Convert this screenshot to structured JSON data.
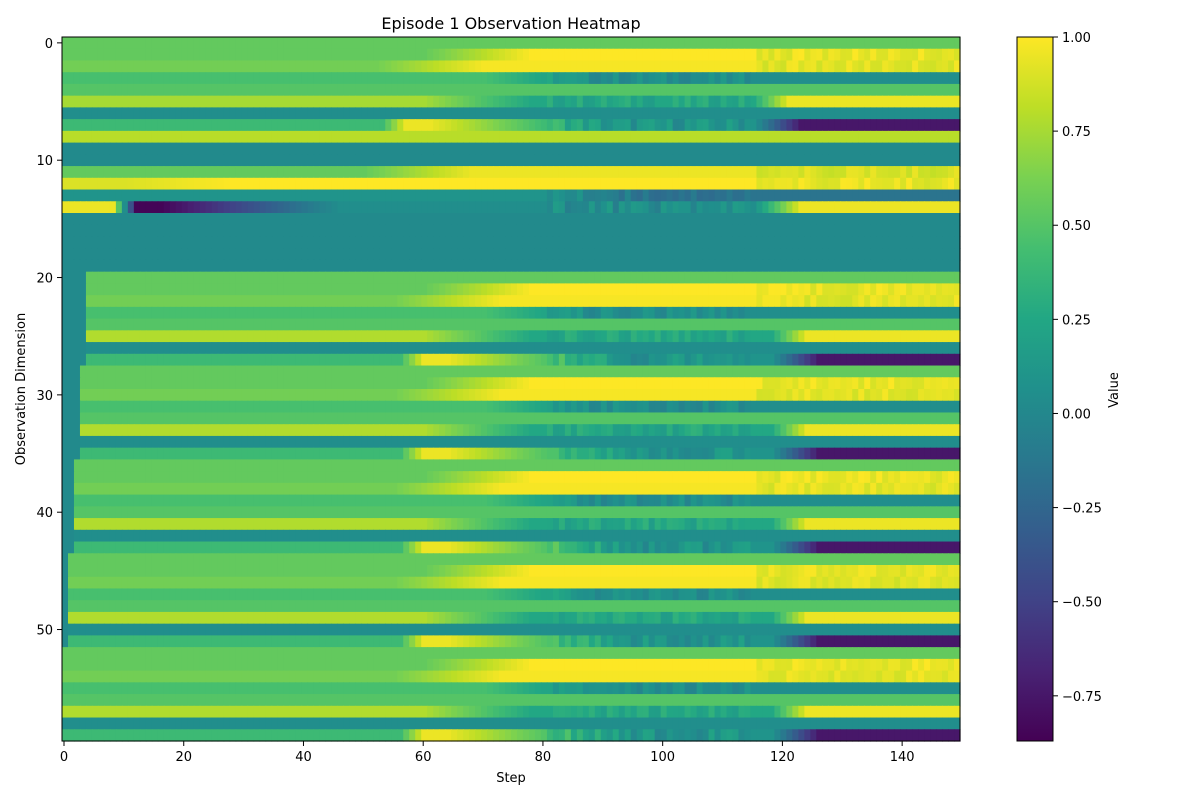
{
  "chart_data": {
    "type": "heatmap",
    "title": "Episode 1 Observation Heatmap",
    "xlabel": "Step",
    "ylabel": "Observation Dimension",
    "xlim": [
      0,
      150
    ],
    "ylim": [
      59.5,
      -0.5
    ],
    "x_ticks": [
      0,
      20,
      40,
      60,
      80,
      100,
      120,
      140
    ],
    "y_ticks": [
      0,
      10,
      20,
      30,
      40,
      50
    ],
    "colorbar": {
      "label": "Value",
      "colormap": "viridis",
      "range": [
        -0.87,
        1.0
      ],
      "ticks": [
        1.0,
        0.75,
        0.5,
        0.25,
        0.0,
        -0.25,
        -0.5,
        -0.75
      ],
      "tick_labels": [
        "1.00",
        "0.75",
        "0.50",
        "0.25",
        "0.00",
        "−0.25",
        "−0.50",
        "−0.75"
      ]
    },
    "n_steps": 150,
    "n_dims": 60,
    "groups": [
      {
        "dims": [
          0,
          7
        ],
        "start_step": 0,
        "rows": [
          {
            "v": 0.55
          },
          {
            "v": 0.55,
            "shape": "rise",
            "start": 60,
            "end": 1.0
          },
          {
            "v": 0.6,
            "shape": "rise",
            "start": 52,
            "end": 0.98
          },
          {
            "v": 0.45,
            "shape": "fall",
            "start": 70,
            "end": 0.05
          },
          {
            "v": 0.5
          },
          {
            "v": 0.75,
            "shape": "fall",
            "start": 60,
            "end": 0.25,
            "recover": 115,
            "rec_end": 0.95
          },
          {
            "v": 0.05
          },
          {
            "v": 0.4,
            "shape": "dip",
            "start": 53,
            "end": 0.95,
            "low": -0.75,
            "low_start": 115
          }
        ]
      },
      {
        "dims": [
          8,
          8
        ],
        "start_step": 0,
        "rows": [
          {
            "v": 0.8
          }
        ]
      },
      {
        "dims": [
          9,
          10
        ],
        "start_step": 0,
        "rows": [
          {
            "v": 0.02
          },
          {
            "v": 0.02
          }
        ]
      },
      {
        "dims": [
          11,
          14
        ],
        "start_step": 0,
        "rows": [
          {
            "v": 0.55,
            "shape": "rise",
            "start": 50,
            "end": 0.95
          },
          {
            "v": 0.9,
            "shape": "hold",
            "start": 10,
            "end": 1.0
          },
          {
            "v": 0.1,
            "shape": "fall",
            "start": 80,
            "end": -0.15
          },
          {
            "v": 0.95,
            "shape": "dip",
            "start": 8,
            "end": -0.85,
            "low": 0.95,
            "low_start": 115
          }
        ]
      },
      {
        "dims": [
          15,
          19
        ],
        "start_step": 0,
        "rows": [
          {
            "v": 0.02
          },
          {
            "v": 0.02
          },
          {
            "v": 0.02
          },
          {
            "v": 0.02
          },
          {
            "v": 0.02
          }
        ]
      },
      {
        "dims": [
          20,
          27
        ],
        "start_step": 4,
        "rows": [
          {
            "v": 0.55
          },
          {
            "v": 0.55,
            "shape": "rise",
            "start": 60,
            "end": 1.0
          },
          {
            "v": 0.6,
            "shape": "rise",
            "start": 55,
            "end": 0.98
          },
          {
            "v": 0.45,
            "shape": "fall",
            "start": 70,
            "end": 0.05
          },
          {
            "v": 0.5
          },
          {
            "v": 0.78,
            "shape": "fall",
            "start": 60,
            "end": 0.25,
            "recover": 118,
            "rec_end": 0.95
          },
          {
            "v": 0.05
          },
          {
            "v": 0.4,
            "shape": "dip",
            "start": 56,
            "end": 0.95,
            "low": -0.75,
            "low_start": 118
          }
        ]
      },
      {
        "dims": [
          28,
          35
        ],
        "start_step": 3,
        "rows": [
          {
            "v": 0.55
          },
          {
            "v": 0.55,
            "shape": "rise",
            "start": 60,
            "end": 1.0
          },
          {
            "v": 0.6,
            "shape": "rise",
            "start": 55,
            "end": 0.98
          },
          {
            "v": 0.45,
            "shape": "fall",
            "start": 70,
            "end": 0.05
          },
          {
            "v": 0.5
          },
          {
            "v": 0.78,
            "shape": "fall",
            "start": 60,
            "end": 0.25,
            "recover": 118,
            "rec_end": 0.95
          },
          {
            "v": 0.05
          },
          {
            "v": 0.4,
            "shape": "dip",
            "start": 56,
            "end": 0.95,
            "low": -0.75,
            "low_start": 118
          }
        ]
      },
      {
        "dims": [
          36,
          43
        ],
        "start_step": 2,
        "rows": [
          {
            "v": 0.55
          },
          {
            "v": 0.55,
            "shape": "rise",
            "start": 60,
            "end": 1.0
          },
          {
            "v": 0.6,
            "shape": "rise",
            "start": 55,
            "end": 0.98
          },
          {
            "v": 0.45,
            "shape": "fall",
            "start": 70,
            "end": 0.05
          },
          {
            "v": 0.5
          },
          {
            "v": 0.78,
            "shape": "fall",
            "start": 60,
            "end": 0.25,
            "recover": 118,
            "rec_end": 0.95
          },
          {
            "v": 0.05
          },
          {
            "v": 0.4,
            "shape": "dip",
            "start": 56,
            "end": 0.95,
            "low": -0.75,
            "low_start": 118
          }
        ]
      },
      {
        "dims": [
          44,
          51
        ],
        "start_step": 1,
        "rows": [
          {
            "v": 0.55
          },
          {
            "v": 0.55,
            "shape": "rise",
            "start": 60,
            "end": 1.0
          },
          {
            "v": 0.6,
            "shape": "rise",
            "start": 55,
            "end": 0.98
          },
          {
            "v": 0.45,
            "shape": "fall",
            "start": 70,
            "end": 0.05
          },
          {
            "v": 0.5
          },
          {
            "v": 0.78,
            "shape": "fall",
            "start": 60,
            "end": 0.25,
            "recover": 118,
            "rec_end": 0.95
          },
          {
            "v": 0.05
          },
          {
            "v": 0.4,
            "shape": "dip",
            "start": 56,
            "end": 0.95,
            "low": -0.75,
            "low_start": 118
          }
        ]
      },
      {
        "dims": [
          52,
          59
        ],
        "start_step": 0,
        "rows": [
          {
            "v": 0.55
          },
          {
            "v": 0.55,
            "shape": "rise",
            "start": 60,
            "end": 1.0
          },
          {
            "v": 0.6,
            "shape": "rise",
            "start": 55,
            "end": 0.98
          },
          {
            "v": 0.45,
            "shape": "fall",
            "start": 70,
            "end": 0.05
          },
          {
            "v": 0.5
          },
          {
            "v": 0.78,
            "shape": "fall",
            "start": 60,
            "end": 0.25,
            "recover": 118,
            "rec_end": 0.95
          },
          {
            "v": 0.05
          },
          {
            "v": 0.4,
            "shape": "dip",
            "start": 56,
            "end": 0.95,
            "low": -0.75,
            "low_start": 118
          }
        ]
      }
    ]
  }
}
